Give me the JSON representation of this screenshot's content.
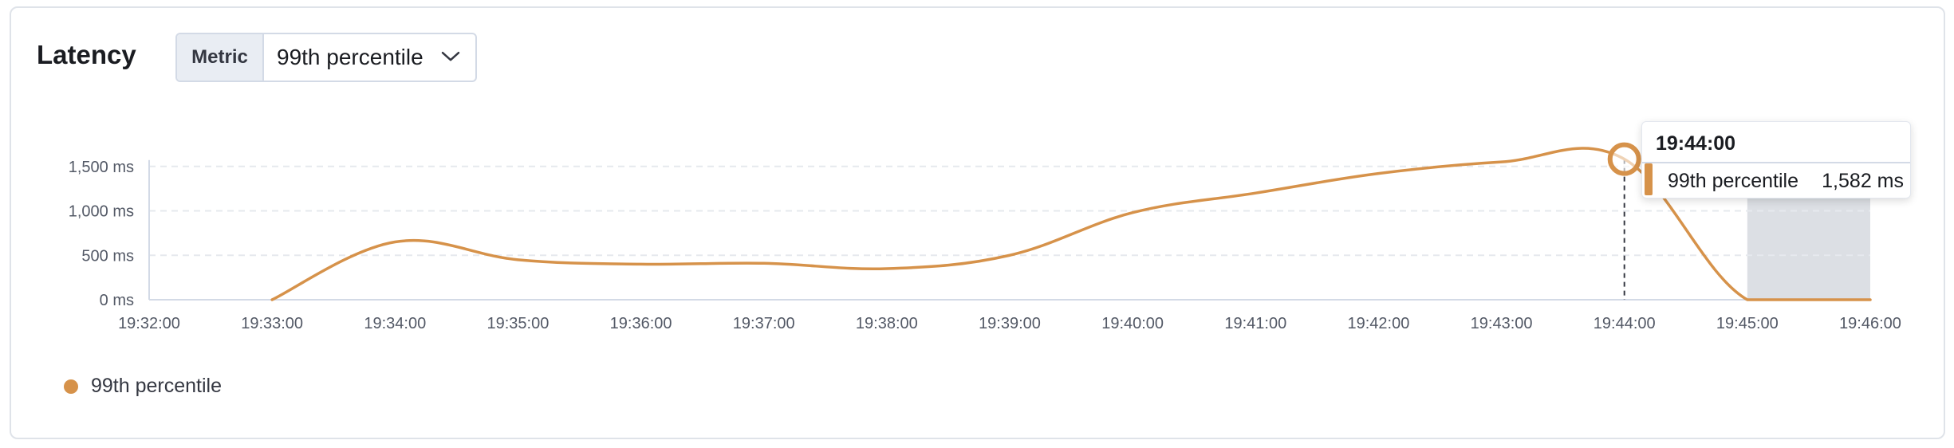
{
  "panel": {
    "title": "Latency",
    "metric_select": {
      "label": "Metric",
      "value": "99th percentile"
    }
  },
  "tooltip": {
    "time": "19:44:00",
    "series": "99th percentile",
    "value": "1,582 ms"
  },
  "legend": {
    "items": [
      {
        "label": "99th percentile",
        "color": "#d6924a"
      }
    ]
  },
  "chart_data": {
    "type": "line",
    "title": "",
    "xlabel": "",
    "ylabel": "",
    "x_ticks": [
      "19:32:00",
      "19:33:00",
      "19:34:00",
      "19:35:00",
      "19:36:00",
      "19:37:00",
      "19:38:00",
      "19:39:00",
      "19:40:00",
      "19:41:00",
      "19:42:00",
      "19:43:00",
      "19:44:00",
      "19:45:00",
      "19:46:00"
    ],
    "y_ticks": [
      "0 ms",
      "500 ms",
      "1,000 ms",
      "1,500 ms"
    ],
    "ylim": [
      0,
      1500
    ],
    "series": [
      {
        "name": "99th percentile",
        "color": "#d6924a",
        "x": [
          "19:33:00",
          "19:34:00",
          "19:35:00",
          "19:36:00",
          "19:37:00",
          "19:38:00",
          "19:39:00",
          "19:40:00",
          "19:41:00",
          "19:42:00",
          "19:43:00",
          "19:44:00",
          "19:45:00",
          "19:46:00"
        ],
        "values": [
          0,
          650,
          450,
          400,
          410,
          350,
          500,
          980,
          1200,
          1420,
          1550,
          1582,
          0,
          0
        ]
      }
    ],
    "highlight": {
      "x": "19:44:00",
      "value": 1582
    },
    "shaded_range": [
      "19:45:00",
      "19:46:00"
    ],
    "grid": true,
    "legend_position": "bottom-left"
  }
}
